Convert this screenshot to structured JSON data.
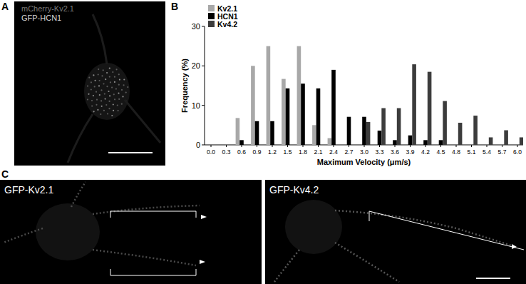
{
  "panels": {
    "a": {
      "label": "A",
      "channels": [
        "mCherry-Kv2.1",
        "GFP-HCN1"
      ]
    },
    "b": {
      "label": "B"
    },
    "c": {
      "label": "C",
      "images": [
        "GFP-Kv2.1",
        "GFP-Kv4.2"
      ]
    }
  },
  "chart_data": {
    "type": "bar",
    "x_label": "Maximum Velocity (μm/s)",
    "y_label": "Frequency (%)",
    "categories": [
      "0.0",
      "0.3",
      "0.6",
      "0.9",
      "1.2",
      "1.5",
      "1.8",
      "2.1",
      "2.4",
      "2.7",
      "3.0",
      "3.3",
      "3.6",
      "3.9",
      "4.2",
      "4.5",
      "4.8",
      "5.1",
      "5.4",
      "5.7",
      "6.0"
    ],
    "series": [
      {
        "name": "Kv2.1",
        "color": "#a8a8a8",
        "values": [
          0,
          0,
          6.8,
          20,
          25,
          16.7,
          25,
          5,
          1.7,
          0,
          0,
          0,
          0,
          0,
          0,
          0,
          0,
          0,
          0,
          0,
          0
        ]
      },
      {
        "name": "HCN1",
        "color": "#000000",
        "values": [
          0,
          0,
          1.2,
          6,
          6,
          14.3,
          15.5,
          14.3,
          19,
          7.1,
          7.1,
          3.6,
          1.2,
          2.4,
          1.2,
          1.2,
          0,
          0,
          0,
          0,
          0
        ]
      },
      {
        "name": "Kv4.2",
        "color": "#3c3c3c",
        "values": [
          0,
          0,
          0,
          0,
          0,
          0,
          0,
          0,
          0,
          0,
          5.8,
          9.3,
          9.3,
          20.4,
          18.5,
          11.1,
          5.6,
          7.4,
          1.9,
          3.7,
          1.9
        ]
      }
    ],
    "ylim": [
      0,
      30
    ],
    "yticks": [
      0,
      10,
      20,
      30
    ],
    "legend": "upper-left",
    "grid": false
  }
}
